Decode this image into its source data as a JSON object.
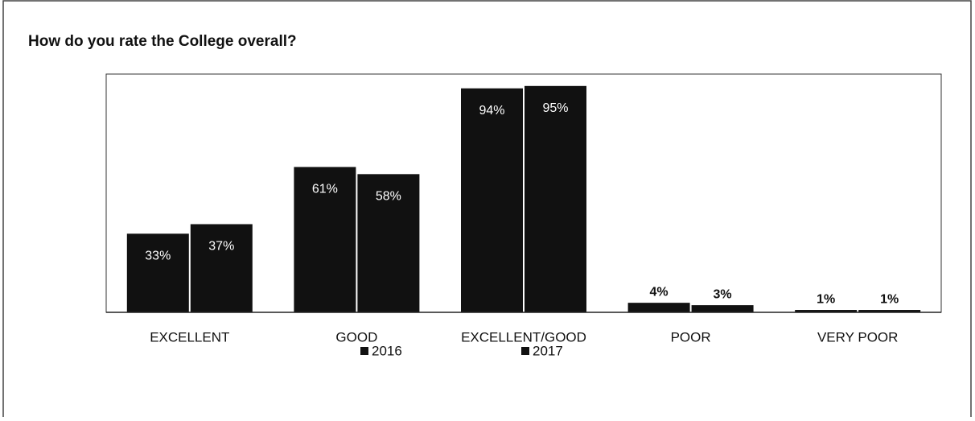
{
  "chart_data": {
    "type": "bar",
    "title": "How do you rate the College overall?",
    "categories": [
      "EXCELLENT",
      "GOOD",
      "EXCELLENT/GOOD",
      "POOR",
      "VERY POOR"
    ],
    "series": [
      {
        "name": "2016",
        "color": "#111111",
        "values": [
          33,
          61,
          94,
          4,
          1
        ],
        "value_labels": [
          "33%",
          "61%",
          "94%",
          "4%",
          "1%"
        ]
      },
      {
        "name": "2017",
        "color": "#111111",
        "values": [
          37,
          58,
          95,
          3,
          1
        ],
        "value_labels": [
          "37%",
          "58%",
          "95%",
          "3%",
          "1%"
        ]
      }
    ],
    "ylim": [
      0,
      100
    ],
    "legend": "bottom"
  }
}
